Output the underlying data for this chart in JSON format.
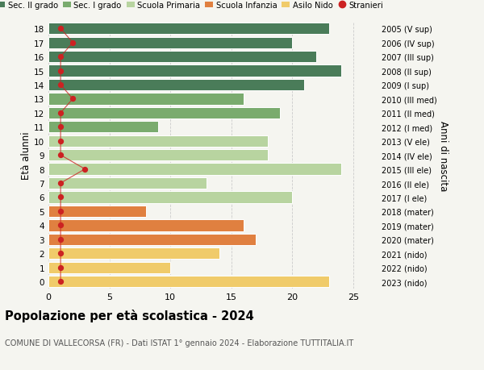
{
  "ages": [
    18,
    17,
    16,
    15,
    14,
    13,
    12,
    11,
    10,
    9,
    8,
    7,
    6,
    5,
    4,
    3,
    2,
    1,
    0
  ],
  "right_labels": [
    "2005 (V sup)",
    "2006 (IV sup)",
    "2007 (III sup)",
    "2008 (II sup)",
    "2009 (I sup)",
    "2010 (III med)",
    "2011 (II med)",
    "2012 (I med)",
    "2013 (V ele)",
    "2014 (IV ele)",
    "2015 (III ele)",
    "2016 (II ele)",
    "2017 (I ele)",
    "2018 (mater)",
    "2019 (mater)",
    "2020 (mater)",
    "2021 (nido)",
    "2022 (nido)",
    "2023 (nido)"
  ],
  "bar_values": [
    23,
    20,
    22,
    24,
    21,
    16,
    19,
    9,
    18,
    18,
    24,
    13,
    20,
    8,
    16,
    17,
    14,
    10,
    23
  ],
  "bar_colors": [
    "#4a7c59",
    "#4a7c59",
    "#4a7c59",
    "#4a7c59",
    "#4a7c59",
    "#7aab6e",
    "#7aab6e",
    "#7aab6e",
    "#b8d4a0",
    "#b8d4a0",
    "#b8d4a0",
    "#b8d4a0",
    "#b8d4a0",
    "#e08040",
    "#e08040",
    "#e08040",
    "#f0cb6a",
    "#f0cb6a",
    "#f0cb6a"
  ],
  "stranieri_values": [
    1,
    2,
    1,
    1,
    1,
    2,
    1,
    1,
    1,
    1,
    3,
    1,
    1,
    1,
    1,
    1,
    1,
    1,
    1
  ],
  "legend_labels": [
    "Sec. II grado",
    "Sec. I grado",
    "Scuola Primaria",
    "Scuola Infanzia",
    "Asilo Nido",
    "Stranieri"
  ],
  "legend_colors": [
    "#4a7c59",
    "#7aab6e",
    "#b8d4a0",
    "#e08040",
    "#f0cb6a",
    "#cc2222"
  ],
  "title": "Popolazione per età scolastica - 2024",
  "subtitle": "COMUNE DI VALLECORSA (FR) - Dati ISTAT 1° gennaio 2024 - Elaborazione TUTTITALIA.IT",
  "ylabel_left": "Età alunni",
  "ylabel_right": "Anni di nascita",
  "xlim": [
    0,
    27
  ],
  "background_color": "#f5f5f0",
  "grid_color": "#cccccc",
  "bar_edge_color": "#ffffff",
  "stranieri_color": "#cc2222"
}
